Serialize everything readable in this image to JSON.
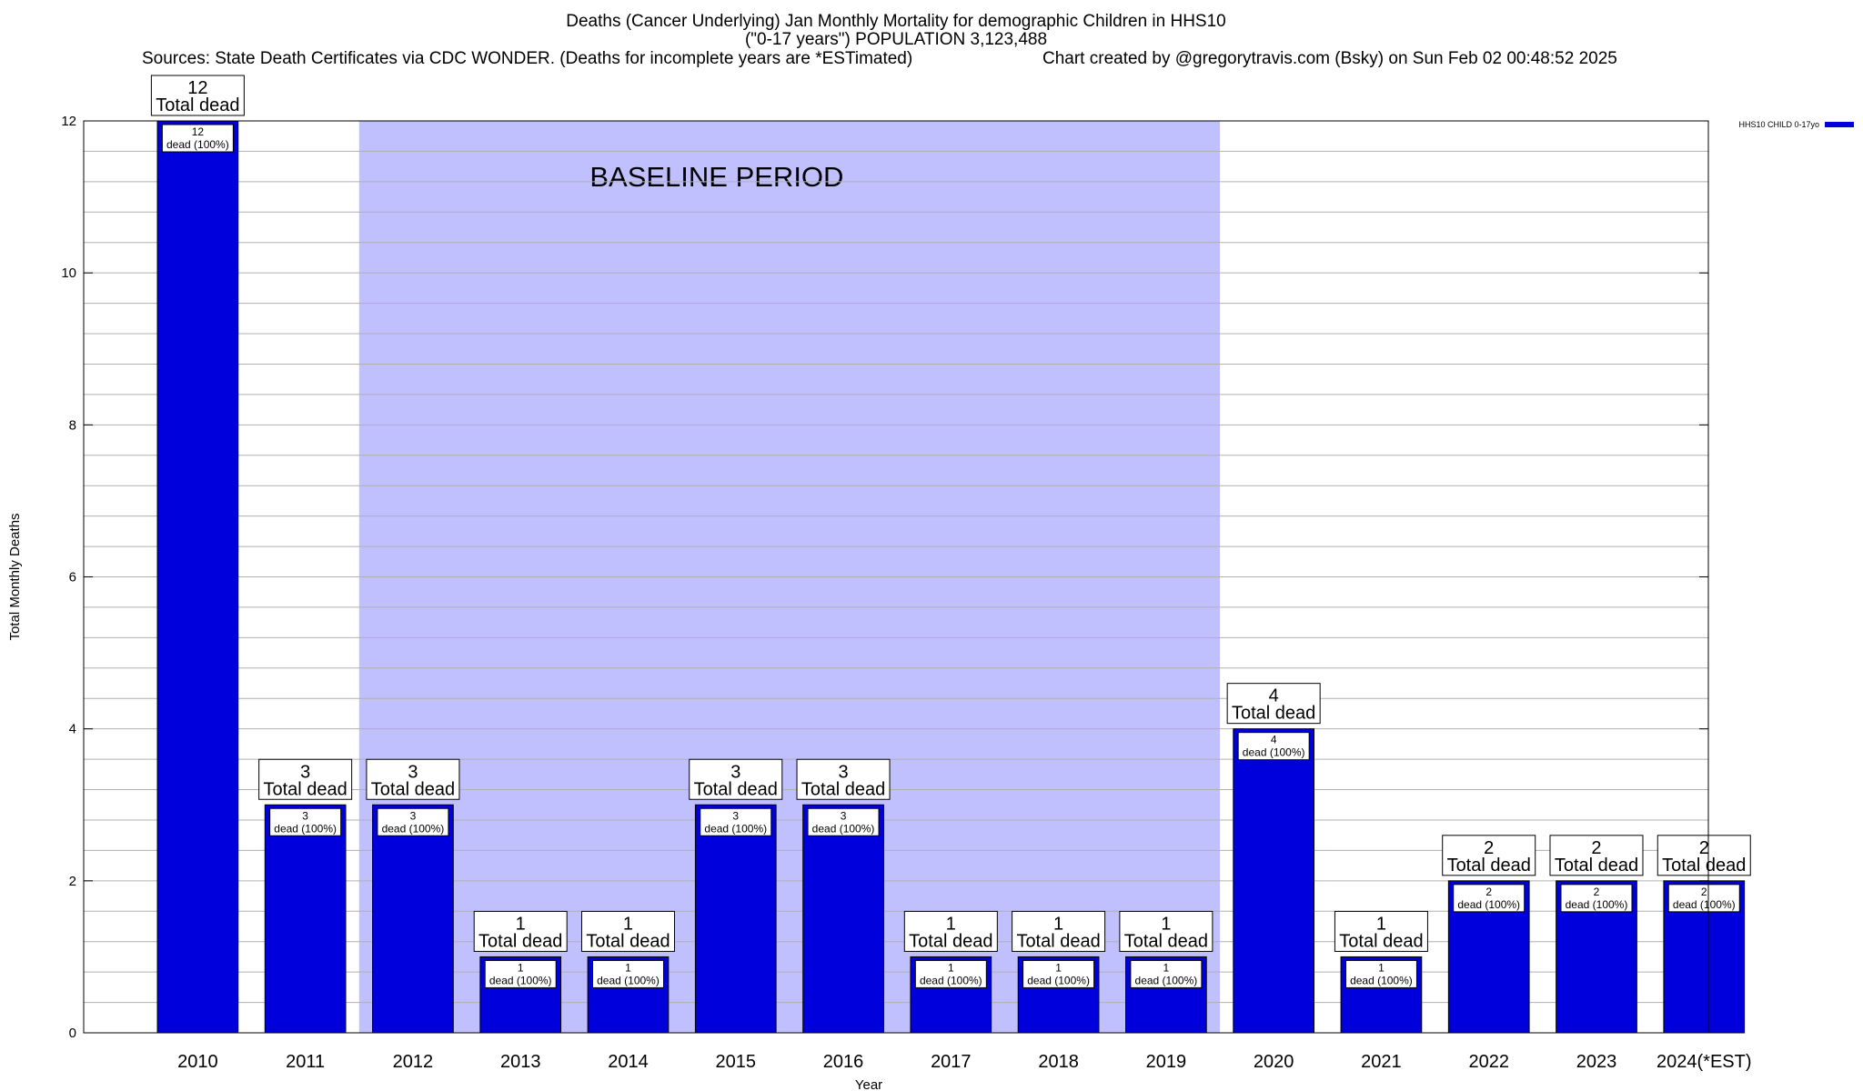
{
  "header": {
    "title_line1": "Deaths (Cancer Underlying) Jan Monthly Mortality for demographic Children in HHS10",
    "title_line2": "(\"0-17 years\") POPULATION 3,123,488",
    "sources": "Sources: State Death Certificates via CDC WONDER. (Deaths for incomplete years are *ESTimated)",
    "credit": "Chart created by @gregorytravis.com (Bsky) on Sun Feb 02 00:48:52 2025"
  },
  "chart_data": {
    "type": "bar",
    "xlabel": "Year",
    "ylabel": "Total Monthly Deaths",
    "ylim": [
      0,
      12
    ],
    "yticks": [
      0,
      2,
      4,
      6,
      8,
      10,
      12
    ],
    "grid": true,
    "categories": [
      "2010",
      "2011",
      "2012",
      "2013",
      "2014",
      "2015",
      "2016",
      "2017",
      "2018",
      "2019",
      "2020",
      "2021",
      "2022",
      "2023",
      "2024(*EST)"
    ],
    "series": [
      {
        "name": "HHS10 CHILD 0-17yo",
        "color": "#0000dd",
        "values": [
          12,
          3,
          3,
          1,
          1,
          3,
          3,
          1,
          1,
          1,
          4,
          1,
          2,
          2,
          2
        ]
      }
    ],
    "total_label_suffix": "Total dead",
    "bar_label_suffix": "dead (100%)",
    "baseline": {
      "label": "BASELINE PERIOD",
      "start": "2012",
      "end": "2019",
      "color": "#c0c0ff"
    },
    "legend_position": "top-right"
  }
}
